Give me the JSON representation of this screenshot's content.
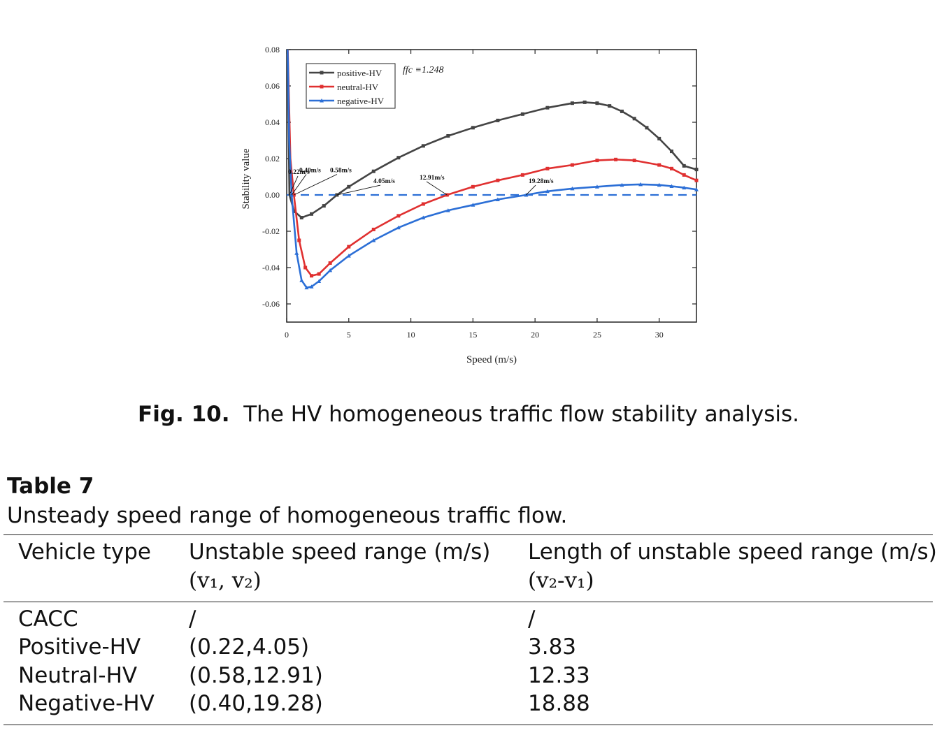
{
  "chart_data": {
    "type": "line",
    "xlabel": "Speed (m/s)",
    "ylabel": "Stability value",
    "xlim": [
      0,
      33
    ],
    "ylim": [
      -0.07,
      0.08
    ],
    "xticks": [
      "0",
      "5",
      "10",
      "15",
      "20",
      "25",
      "30"
    ],
    "yticks": [
      "0.08",
      "0.06",
      "0.04",
      "0.02",
      "0.00",
      "-0.02",
      "-0.04",
      "-0.06"
    ],
    "legend_position": "top-left",
    "fc_label": "ffc ≡1.248",
    "series": [
      {
        "name": "positive-HV",
        "color": "#444444",
        "x": [
          0.05,
          0.22,
          0.6,
          1.2,
          2,
          3,
          4.05,
          5,
          7,
          9,
          11,
          13,
          15,
          17,
          19,
          21,
          23,
          24,
          25,
          26,
          27,
          28,
          29,
          30,
          31,
          32,
          33
        ],
        "y": [
          0.09,
          0.0,
          -0.009,
          -0.0125,
          -0.0105,
          -0.006,
          0.0,
          0.0045,
          0.013,
          0.0205,
          0.027,
          0.0325,
          0.037,
          0.041,
          0.0445,
          0.048,
          0.0505,
          0.051,
          0.0505,
          0.049,
          0.046,
          0.042,
          0.037,
          0.031,
          0.024,
          0.016,
          0.014
        ]
      },
      {
        "name": "neutral-HV",
        "color": "#e03030",
        "x": [
          0.05,
          0.3,
          0.58,
          1.0,
          1.5,
          2.0,
          2.6,
          3.5,
          5,
          7,
          9,
          11,
          12.91,
          15,
          17,
          19,
          21,
          23,
          25,
          26.5,
          28,
          30,
          31,
          32,
          33
        ],
        "y": [
          0.09,
          0.02,
          0.0,
          -0.025,
          -0.04,
          -0.0445,
          -0.0435,
          -0.0375,
          -0.0285,
          -0.019,
          -0.0115,
          -0.005,
          0.0,
          0.0045,
          0.008,
          0.011,
          0.0145,
          0.0165,
          0.019,
          0.0195,
          0.019,
          0.0165,
          0.0145,
          0.011,
          0.008
        ]
      },
      {
        "name": "negative-HV",
        "color": "#2c6fd6",
        "x": [
          0.05,
          0.2,
          0.4,
          0.8,
          1.2,
          1.6,
          2.0,
          2.6,
          3.5,
          5,
          7,
          9,
          11,
          13,
          15,
          17,
          19.28,
          21,
          23,
          25,
          27,
          28.5,
          30,
          31,
          32,
          33
        ],
        "y": [
          0.09,
          0.03,
          0.0,
          -0.032,
          -0.047,
          -0.051,
          -0.0505,
          -0.0475,
          -0.0415,
          -0.0335,
          -0.025,
          -0.018,
          -0.0125,
          -0.0085,
          -0.0055,
          -0.0025,
          0.0,
          0.002,
          0.0035,
          0.0045,
          0.0055,
          0.0058,
          0.0055,
          0.0048,
          0.004,
          0.003
        ]
      }
    ],
    "annotations": [
      "0.22m/s",
      "0.40m/s",
      "0.58m/s",
      "4.05m/s",
      "12.91m/s",
      "19.28m/s"
    ]
  },
  "caption": {
    "label": "Fig. 10.",
    "text": "The HV homogeneous traffic flow stability analysis."
  },
  "table": {
    "label": "Table 7",
    "caption": "Unsteady speed range of homogeneous traffic flow.",
    "headers": [
      "Vehicle type",
      "Unstable speed range (m/s)",
      "Length of unstable speed range (m/s)"
    ],
    "subheaders": [
      "",
      "(v₁,  v₂)",
      "(v₂-v₁)"
    ],
    "rows": [
      [
        "CACC",
        "/",
        "/"
      ],
      [
        "Positive-HV",
        "(0.22,4.05)",
        "3.83"
      ],
      [
        "Neutral-HV",
        "(0.58,12.91)",
        "12.33"
      ],
      [
        "Negative-HV",
        "(0.40,19.28)",
        "18.88"
      ]
    ]
  }
}
